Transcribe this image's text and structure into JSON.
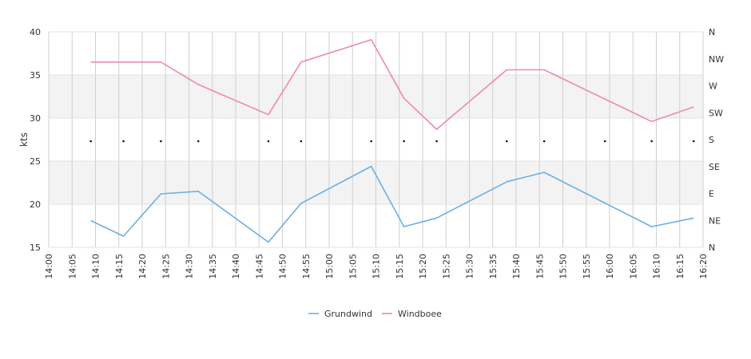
{
  "chart_data": {
    "type": "line",
    "ylabel": "kts",
    "ylim": [
      15,
      40
    ],
    "y_ticks": [
      "15",
      "20",
      "25",
      "30",
      "35",
      "40"
    ],
    "right_axis_ticks": [
      "N",
      "NE",
      "E",
      "SE",
      "S",
      "SW",
      "W",
      "NW",
      "N"
    ],
    "x_range": [
      "14:00",
      "16:20"
    ],
    "x_ticks": [
      "14:00",
      "14:05",
      "14:10",
      "14:15",
      "14:20",
      "14:25",
      "14:30",
      "14:35",
      "14:40",
      "14:45",
      "14:50",
      "14:55",
      "15:00",
      "15:05",
      "15:10",
      "15:15",
      "15:20",
      "15:25",
      "15:30",
      "15:35",
      "15:40",
      "15:45",
      "15:50",
      "15:55",
      "16:00",
      "16:05",
      "16:10",
      "16:15",
      "16:20"
    ],
    "series": [
      {
        "name": "Grundwind",
        "color": "#6aaee8",
        "points": [
          [
            "14:09",
            18.1
          ],
          [
            "14:16",
            16.3
          ],
          [
            "14:24",
            21.2
          ],
          [
            "14:32",
            21.5
          ],
          [
            "14:47",
            15.6
          ],
          [
            "14:54",
            20.1
          ],
          [
            "15:09",
            24.4
          ],
          [
            "15:16",
            17.4
          ],
          [
            "15:23",
            18.4
          ],
          [
            "15:38",
            22.6
          ],
          [
            "15:46",
            23.7
          ],
          [
            "16:09",
            17.4
          ],
          [
            "16:18",
            18.4
          ]
        ]
      },
      {
        "name": "Windboee",
        "color": "#ee88b8",
        "points": [
          [
            "14:09",
            36.5
          ],
          [
            "14:16",
            36.5
          ],
          [
            "14:24",
            36.5
          ],
          [
            "14:32",
            33.9
          ],
          [
            "14:47",
            30.4
          ],
          [
            "14:54",
            36.5
          ],
          [
            "15:09",
            39.1
          ],
          [
            "15:16",
            32.3
          ],
          [
            "15:23",
            28.7
          ],
          [
            "15:38",
            35.6
          ],
          [
            "15:46",
            35.6
          ],
          [
            "16:09",
            29.6
          ],
          [
            "16:18",
            31.3
          ]
        ]
      }
    ],
    "direction_markers": [
      "14:09",
      "14:16",
      "14:24",
      "14:32",
      "14:47",
      "14:54",
      "15:09",
      "15:16",
      "15:23",
      "15:38",
      "15:46",
      "15:59",
      "16:09",
      "16:18"
    ],
    "legend_position": "bottom",
    "grid": true
  }
}
